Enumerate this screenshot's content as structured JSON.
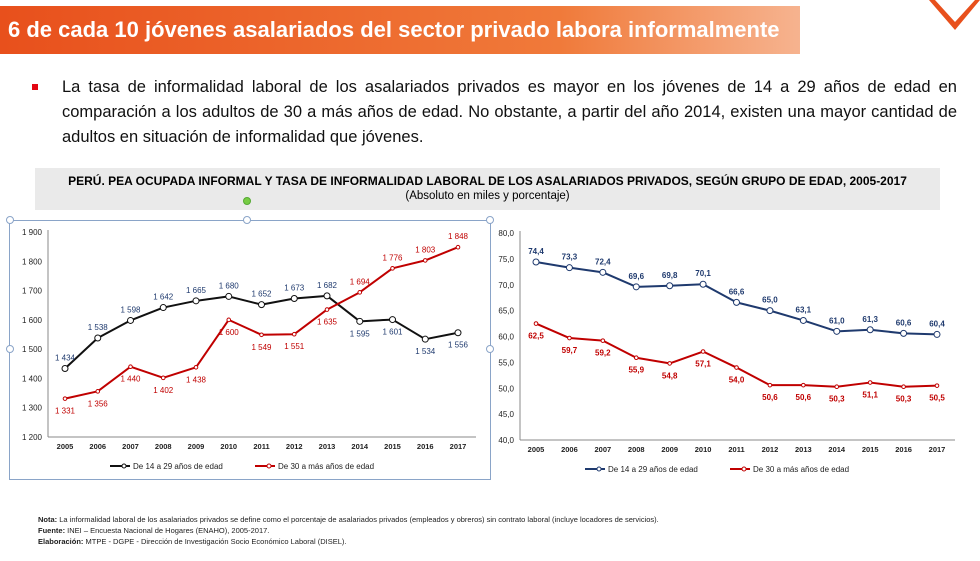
{
  "banner": {
    "title": "6 de cada 10 jóvenes asalariados del sector privado labora informalmente"
  },
  "bullet": {
    "text": "La tasa de informalidad laboral de los asalariados privados es mayor en los jóvenes de 14 a 29 años de edad en comparación a los adultos de 30 a más años de edad. No obstante, a partir del año 2014, existen una mayor cantidad de adultos en situación de informalidad que jóvenes."
  },
  "figure": {
    "title": "PERÚ. PEA OCUPADA INFORMAL Y TASA DE INFORMALIDAD LABORAL DE LOS ASALARIADOS PRIVADOS, SEGÚN GRUPO DE EDAD, 2005-2017",
    "subtitle": "(Absoluto en miles y porcentaje)"
  },
  "colors": {
    "banner": "#e8501c",
    "young_abs": "#111111",
    "young_rate": "#1f3a6e",
    "adult": "#c00000"
  },
  "chart_data": [
    {
      "type": "line",
      "categories": [
        "2005",
        "2006",
        "2007",
        "2008",
        "2009",
        "2010",
        "2011",
        "2012",
        "2013",
        "2014",
        "2015",
        "2016",
        "2017"
      ],
      "ylim": [
        1200,
        1900
      ],
      "yticks": [
        "1 200",
        "1 300",
        "1 400",
        "1 500",
        "1 600",
        "1 700",
        "1 800",
        "1 900"
      ],
      "legend": "bottom",
      "series": [
        {
          "name": "De 14 a 29 años de edad",
          "values": [
            1434,
            1538,
            1598,
            1642,
            1665,
            1680,
            1652,
            1673,
            1682,
            1595,
            1601,
            1534,
            1556
          ],
          "labels": [
            "1 434",
            "1 538",
            "1 598",
            "1 642",
            "1 665",
            "1 680",
            "1 652",
            "1 673",
            "1 682",
            "1 595",
            "1 601",
            "1 534",
            "1 556"
          ]
        },
        {
          "name": "De 30 a más años de edad",
          "values": [
            1331,
            1356,
            1440,
            1402,
            1438,
            1600,
            1549,
            1551,
            1635,
            1694,
            1776,
            1803,
            1848
          ],
          "labels": [
            "1 331",
            "1 356",
            "1 440",
            "1 402",
            "1 438",
            "1 600",
            "1 549",
            "1 551",
            "1 635",
            "1 694",
            "1 776",
            "1 803",
            "1 848"
          ]
        }
      ]
    },
    {
      "type": "line",
      "categories": [
        "2005",
        "2006",
        "2007",
        "2008",
        "2009",
        "2010",
        "2011",
        "2012",
        "2013",
        "2014",
        "2015",
        "2016",
        "2017"
      ],
      "ylim": [
        40,
        80
      ],
      "yticks": [
        "40,0",
        "45,0",
        "50,0",
        "55,0",
        "60,0",
        "65,0",
        "70,0",
        "75,0",
        "80,0"
      ],
      "legend": "bottom",
      "series": [
        {
          "name": "De 14 a 29 años de edad",
          "values": [
            74.4,
            73.3,
            72.4,
            69.6,
            69.8,
            70.1,
            66.6,
            65.0,
            63.1,
            61.0,
            61.3,
            60.6,
            60.4
          ],
          "labels": [
            "74,4",
            "73,3",
            "72,4",
            "69,6",
            "69,8",
            "70,1",
            "66,6",
            "65,0",
            "63,1",
            "61,0",
            "61,3",
            "60,6",
            "60,4"
          ]
        },
        {
          "name": "De 30 a más años de edad",
          "values": [
            62.5,
            59.7,
            59.2,
            55.9,
            54.8,
            57.1,
            54.0,
            50.6,
            50.6,
            50.3,
            51.1,
            50.3,
            50.5
          ],
          "labels": [
            "62,5",
            "59,7",
            "59,2",
            "55,9",
            "54,8",
            "57,1",
            "54,0",
            "50,6",
            "50,6",
            "50,3",
            "51,1",
            "50,3",
            "50,5"
          ]
        }
      ]
    }
  ],
  "notes": {
    "nota_label": "Nota:",
    "nota": " La informalidad laboral de los asalariados privados se define como el porcentaje de asalariados privados (empleados y obreros) sin contrato laboral (incluye locadores de servicios).",
    "fuente_label": "Fuente:",
    "fuente": " INEI – Encuesta Nacional de Hogares (ENAHO), 2005-2017.",
    "elab_label": "Elaboración:",
    "elab": " MTPE - DGPE - Dirección de Investigación Socio Económico Laboral (DISEL)."
  }
}
